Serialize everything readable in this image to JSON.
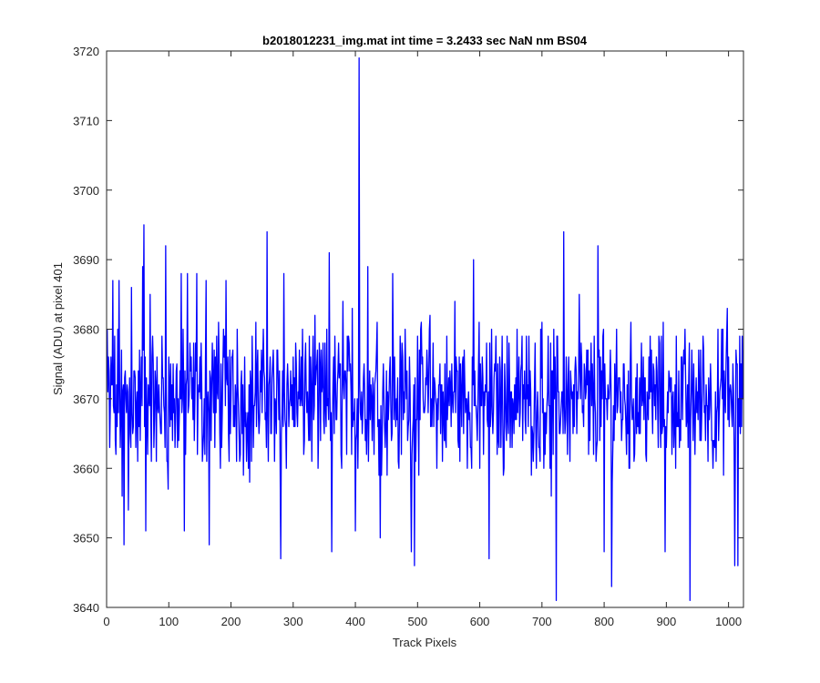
{
  "chart_data": {
    "type": "line",
    "title": "b2018012231_img.mat int time = 3.2433 sec  NaN nm BS04",
    "xlabel": "Track Pixels",
    "ylabel": "Signal (ADU) at pixel 401",
    "xlim": [
      0,
      1024
    ],
    "ylim": [
      3640,
      3720
    ],
    "xticks": [
      0,
      100,
      200,
      300,
      400,
      500,
      600,
      700,
      800,
      900,
      1000
    ],
    "yticks": [
      3640,
      3650,
      3660,
      3670,
      3680,
      3690,
      3700,
      3710,
      3720
    ],
    "grid": false,
    "series": [
      {
        "color": "#0000ff",
        "note_points": "per-pixel signal trace, x = pixel index 1..1024",
        "generator": {
          "count": 1024,
          "mean": 3670,
          "spread": 7.5,
          "anchors": [
            [
              1,
              3680
            ],
            [
              5,
              3663
            ],
            [
              10,
              3687
            ],
            [
              15,
              3662
            ],
            [
              20,
              3687
            ],
            [
              25,
              3656
            ],
            [
              28,
              3649
            ],
            [
              35,
              3654
            ],
            [
              40,
              3686
            ],
            [
              50,
              3661
            ],
            [
              58,
              3689
            ],
            [
              60,
              3695
            ],
            [
              63,
              3651
            ],
            [
              70,
              3685
            ],
            [
              80,
              3661
            ],
            [
              95,
              3692
            ],
            [
              99,
              3657
            ],
            [
              110,
              3663
            ],
            [
              120,
              3688
            ],
            [
              125,
              3651
            ],
            [
              130,
              3688
            ],
            [
              145,
              3688
            ],
            [
              155,
              3663
            ],
            [
              160,
              3687
            ],
            [
              165,
              3649
            ],
            [
              170,
              3678
            ],
            [
              180,
              3681
            ],
            [
              192,
              3687
            ],
            [
              200,
              3670
            ],
            [
              210,
              3680
            ],
            [
              230,
              3658
            ],
            [
              240,
              3681
            ],
            [
              258,
              3694
            ],
            [
              270,
              3661
            ],
            [
              280,
              3647
            ],
            [
              285,
              3688
            ],
            [
              300,
              3676
            ],
            [
              320,
              3678
            ],
            [
              340,
              3660
            ],
            [
              350,
              3665
            ],
            [
              358,
              3691
            ],
            [
              362,
              3648
            ],
            [
              380,
              3684
            ],
            [
              395,
              3683
            ],
            [
              400,
              3651
            ],
            [
              406,
              3719
            ],
            [
              420,
              3689
            ],
            [
              435,
              3681
            ],
            [
              440,
              3650
            ],
            [
              460,
              3688
            ],
            [
              470,
              3660
            ],
            [
              480,
              3680
            ],
            [
              490,
              3648
            ],
            [
              495,
              3646
            ],
            [
              500,
              3679
            ],
            [
              520,
              3682
            ],
            [
              540,
              3661
            ],
            [
              560,
              3684
            ],
            [
              570,
              3671
            ],
            [
              590,
              3690
            ],
            [
              600,
              3660
            ],
            [
              615,
              3647
            ],
            [
              640,
              3675
            ],
            [
              660,
              3680
            ],
            [
              680,
              3669
            ],
            [
              695,
              3663
            ],
            [
              700,
              3681
            ],
            [
              715,
              3656
            ],
            [
              723,
              3641
            ],
            [
              735,
              3694
            ],
            [
              740,
              3671
            ],
            [
              760,
              3685
            ],
            [
              775,
              3662
            ],
            [
              790,
              3692
            ],
            [
              800,
              3648
            ],
            [
              805,
              3667
            ],
            [
              812,
              3643
            ],
            [
              820,
              3680
            ],
            [
              840,
              3660
            ],
            [
              860,
              3678
            ],
            [
              880,
              3674
            ],
            [
              898,
              3648
            ],
            [
              910,
              3670
            ],
            [
              920,
              3674
            ],
            [
              938,
              3641
            ],
            [
              950,
              3671
            ],
            [
              960,
              3677
            ],
            [
              975,
              3660
            ],
            [
              985,
              3668
            ],
            [
              998,
              3683
            ],
            [
              1005,
              3668
            ],
            [
              1010,
              3646
            ],
            [
              1015,
              3646
            ],
            [
              1020,
              3675
            ],
            [
              1024,
              3677
            ]
          ]
        }
      }
    ]
  }
}
